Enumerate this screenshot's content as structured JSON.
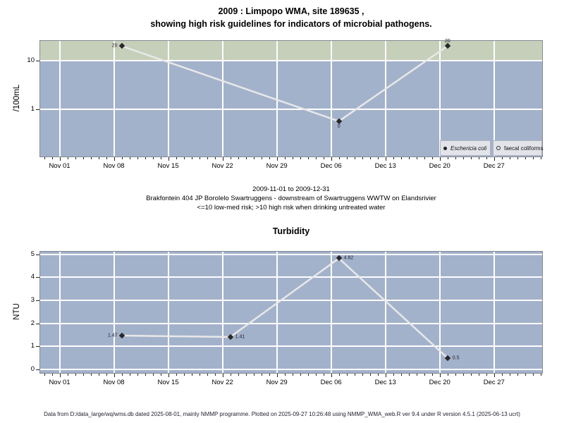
{
  "page": {
    "title_line1": "2009 : Limpopo WMA, site 189635 ,",
    "title_line2": "showing high risk guidelines for indicators of microbial pathogens.",
    "footer": "Data from D:/data_large/wq/wms.db dated 2025-08-01, mainly NMMP programme. Plotted on 2025-09-27 10:26:48 using NMMP_WMA_web.R ver 9.4 under R version 4.5.1 (2025-06-13 ucrt)"
  },
  "colors": {
    "plot_bg": "#a3b2cb",
    "risk_band": "#c6cfb9",
    "gridline": "#ffffff",
    "series_line": "#e8e8e8",
    "marker": "#2a2a2a",
    "legend_bg": "#e2e4ea",
    "tick": "#222222"
  },
  "chart_data": [
    {
      "type": "line",
      "id": "microbial-pathogens",
      "ylabel": "/100mL",
      "yscale": "log",
      "ylim": [
        0.107,
        25.5
      ],
      "y_ticks": [
        {
          "value": 10,
          "label": "10"
        },
        {
          "value": 1,
          "label": "1"
        }
      ],
      "y_grid": [
        10,
        1
      ],
      "band": {
        "from": 10,
        "to": 25.5,
        "meaning": ">10 high risk zone"
      },
      "x_domain_days": [
        -2.5,
        62.2
      ],
      "x_minor_tick_every_days": 1,
      "x_ticks": [
        {
          "day": 0,
          "label": "Nov 01"
        },
        {
          "day": 7,
          "label": "Nov 08"
        },
        {
          "day": 14,
          "label": "Nov 15"
        },
        {
          "day": 21,
          "label": "Nov 22"
        },
        {
          "day": 28,
          "label": "Nov 29"
        },
        {
          "day": 35,
          "label": "Dec 06"
        },
        {
          "day": 42,
          "label": "Dec 13"
        },
        {
          "day": 49,
          "label": "Dec 20"
        },
        {
          "day": 56,
          "label": "Dec 27"
        }
      ],
      "series": [
        {
          "name": "Eschericia coli",
          "points": [
            {
              "date": "2009-11-09",
              "day": 8,
              "value": 20,
              "label": "20",
              "label_side": "left"
            },
            {
              "date": "2009-12-07",
              "day": 36,
              "value": 0,
              "plot_value": 0.57,
              "label": "0",
              "label_side": "below"
            },
            {
              "date": "2009-12-21",
              "day": 50,
              "value": 20,
              "label": "20",
              "label_side": "above"
            }
          ]
        },
        {
          "name": "faecal coliforms",
          "points": []
        }
      ],
      "legend": [
        {
          "label": "Eschericia coli",
          "marker": "filled-dot",
          "italic": true
        },
        {
          "label": "faecal coliforms",
          "marker": "open-circle",
          "italic": false
        }
      ],
      "subtitle_lines": [
        "2009-11-01 to 2009-12-31",
        "Brakfontein 404 JP Borolelo Swartruggens - downstream of Swartruggens WWTW on Elandsrivier",
        "<=10 low-med risk; >10 high risk when drinking untreated water"
      ]
    },
    {
      "type": "line",
      "id": "turbidity",
      "title": "Turbidity",
      "ylabel": "NTU",
      "yscale": "linear",
      "ylim": [
        -0.15,
        5.11
      ],
      "y_ticks": [
        {
          "value": 0,
          "label": "0"
        },
        {
          "value": 1,
          "label": "1"
        },
        {
          "value": 2,
          "label": "2"
        },
        {
          "value": 3,
          "label": "3"
        },
        {
          "value": 4,
          "label": "4"
        },
        {
          "value": 5,
          "label": "5"
        }
      ],
      "y_grid": [
        0,
        1,
        2,
        3,
        4,
        5
      ],
      "x_domain_days": [
        -2.5,
        62.2
      ],
      "x_minor_tick_every_days": 1,
      "x_ticks": [
        {
          "day": 0,
          "label": "Nov 01"
        },
        {
          "day": 7,
          "label": "Nov 08"
        },
        {
          "day": 14,
          "label": "Nov 15"
        },
        {
          "day": 21,
          "label": "Nov 22"
        },
        {
          "day": 28,
          "label": "Nov 29"
        },
        {
          "day": 35,
          "label": "Dec 06"
        },
        {
          "day": 42,
          "label": "Dec 13"
        },
        {
          "day": 49,
          "label": "Dec 20"
        },
        {
          "day": 56,
          "label": "Dec 27"
        }
      ],
      "series": [
        {
          "name": "Turbidity",
          "points": [
            {
              "date": "2009-11-09",
              "day": 8,
              "value": 1.47,
              "label": "1.47",
              "label_side": "left"
            },
            {
              "date": "2009-11-23",
              "day": 22,
              "value": 1.41,
              "label": "1.41",
              "label_side": "right"
            },
            {
              "date": "2009-12-07",
              "day": 36,
              "value": 4.82,
              "label": "4.82",
              "label_side": "right"
            },
            {
              "date": "2009-12-21",
              "day": 50,
              "value": 0.5,
              "label": "0.5",
              "label_side": "right"
            }
          ]
        }
      ]
    }
  ]
}
